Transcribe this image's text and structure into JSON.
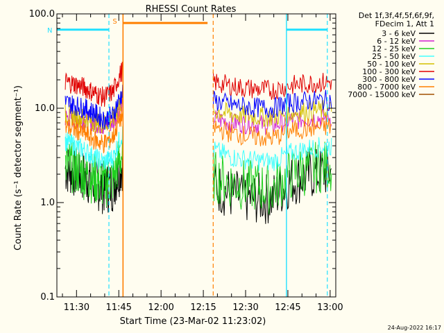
{
  "chart_data": {
    "type": "line",
    "title": "RHESSI Count Rates",
    "xlabel": "Start Time (23-Mar-02 11:23:02)",
    "ylabel": "Count Rate (s⁻¹ detector segment⁻¹)",
    "yscale": "log",
    "ylim": [
      0.1,
      100.0
    ],
    "xlim": [
      "11:23:02",
      "13:02:00"
    ],
    "x_ticks": [
      "11:30",
      "11:45",
      "12:00",
      "12:15",
      "12:30",
      "12:45",
      "13:00"
    ],
    "y_ticks": [
      "0.1",
      "1.0",
      "10.0",
      "100.0"
    ],
    "legend_title": [
      "Det 1f,3f,4f,5f,6f,9f,",
      "FDecim 1, Att 1"
    ],
    "legend_position": "top-right outside",
    "data_gap": [
      "11:46:30",
      "12:18:30"
    ],
    "series": [
      {
        "name": "3 - 6 keV",
        "color": "#000000",
        "values_pre": [
          2.3,
          2.1,
          1.9,
          1.6,
          1.4,
          1.5,
          2.6
        ],
        "values_post": [
          1.5,
          1.2,
          1.1,
          1.1,
          1.7,
          2.0,
          2.1
        ]
      },
      {
        "name": "6 - 12 keV",
        "color": "#d020d0",
        "values_pre": [
          8.0,
          7.8,
          7.6,
          7.0,
          6.5,
          7.2,
          12.0
        ],
        "values_post": [
          7.8,
          7.0,
          6.8,
          6.6,
          7.5,
          7.8,
          8.0
        ]
      },
      {
        "name": "12 - 25 keV",
        "color": "#20d020",
        "values_pre": [
          2.6,
          2.3,
          2.0,
          1.8,
          1.6,
          1.8,
          3.4
        ],
        "values_post": [
          1.9,
          1.6,
          1.5,
          1.4,
          2.0,
          2.3,
          2.5
        ]
      },
      {
        "name": "25 - 50 keV",
        "color": "#40ffff",
        "values_pre": [
          4.5,
          4.0,
          3.6,
          3.0,
          2.7,
          3.0,
          5.5
        ],
        "values_post": [
          3.6,
          3.0,
          2.8,
          2.7,
          3.4,
          3.8,
          4.0
        ]
      },
      {
        "name": "50 - 100 keV",
        "color": "#d4c000",
        "values_pre": [
          8.6,
          8.2,
          7.8,
          7.2,
          6.8,
          7.6,
          13.0
        ],
        "values_post": [
          9.5,
          8.6,
          8.2,
          8.0,
          9.0,
          9.4,
          9.6
        ]
      },
      {
        "name": "100 - 300 keV",
        "color": "#e00000",
        "values_pre": [
          19.0,
          18.0,
          16.5,
          14.5,
          13.0,
          15.0,
          26.0
        ],
        "values_post": [
          19.0,
          17.0,
          16.0,
          15.5,
          17.5,
          18.5,
          19.0
        ]
      },
      {
        "name": "300 - 800 keV",
        "color": "#0000ff",
        "values_pre": [
          11.5,
          10.8,
          10.0,
          9.0,
          7.5,
          8.5,
          15.0
        ],
        "values_post": [
          12.0,
          10.8,
          10.2,
          10.0,
          11.5,
          12.0,
          12.2
        ]
      },
      {
        "name": "800 - 7000 keV",
        "color": "#ff7f00",
        "values_pre": [
          6.3,
          6.0,
          5.4,
          4.6,
          4.2,
          5.0,
          8.8
        ],
        "values_post": [
          6.3,
          5.4,
          5.0,
          4.8,
          5.8,
          6.2,
          6.4
        ]
      },
      {
        "name": "7000 - 15000 keV",
        "color": "#a05000",
        "values_pre": [],
        "values_post": []
      }
    ],
    "markers": [
      {
        "label": "N",
        "color": "#20e0ff"
      },
      {
        "label": "S",
        "color": "#ff7f00"
      }
    ],
    "footer": "24-Aug-2022 16:17"
  }
}
